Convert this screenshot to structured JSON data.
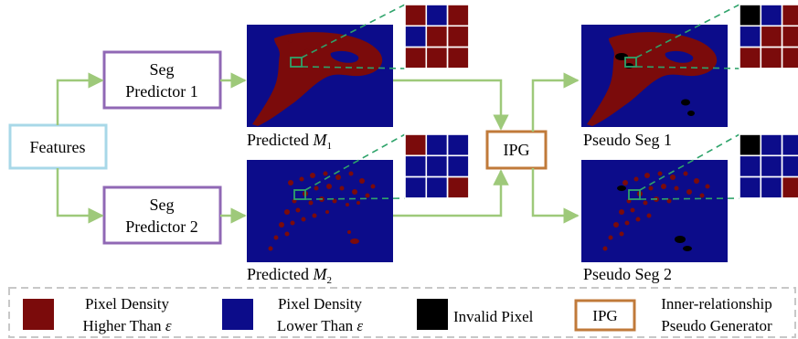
{
  "nodes": {
    "features": "Features",
    "seg1_line1": "Seg",
    "seg1_line2": "Predictor 1",
    "seg2_line1": "Seg",
    "seg2_line2": "Predictor 2",
    "ipg": "IPG"
  },
  "captions": {
    "pred1_prefix": "Predicted ",
    "pred1_var": "M",
    "pred1_sub": "1",
    "pred2_prefix": "Predicted ",
    "pred2_var": "M",
    "pred2_sub": "2",
    "pseudo1": "Pseudo Seg 1",
    "pseudo2": "Pseudo Seg 2"
  },
  "legend": {
    "high_line1": "Pixel Density",
    "high_line2": "Higher Than",
    "low_line1": "Pixel Density",
    "low_line2": "Lower Than",
    "epsilon": "ε",
    "invalid": "Invalid Pixel",
    "ipg_box": "IPG",
    "ipg_line1": "Inner-relationship",
    "ipg_line2": "Pseudo Generator"
  },
  "colors": {
    "high": "#7b0b0b",
    "low": "#0c0c8a",
    "invalid": "#000000",
    "arrow": "#9ec97a",
    "zoom": "#2ea36a",
    "features_border": "#a8d8e8",
    "predictor_border": "#9068b5",
    "ipg_border": "#c07a3a",
    "legend_border": "#c8c8c8"
  },
  "grids": {
    "pred1": [
      "high",
      "low",
      "high",
      "low",
      "high",
      "high",
      "high",
      "high",
      "high"
    ],
    "pseudo1": [
      "invalid",
      "low",
      "high",
      "low",
      "high",
      "high",
      "high",
      "high",
      "high"
    ],
    "pred2": [
      "high",
      "low",
      "low",
      "low",
      "low",
      "low",
      "low",
      "low",
      "high"
    ],
    "pseudo2": [
      "invalid",
      "low",
      "low",
      "low",
      "low",
      "low",
      "low",
      "low",
      "high"
    ]
  }
}
